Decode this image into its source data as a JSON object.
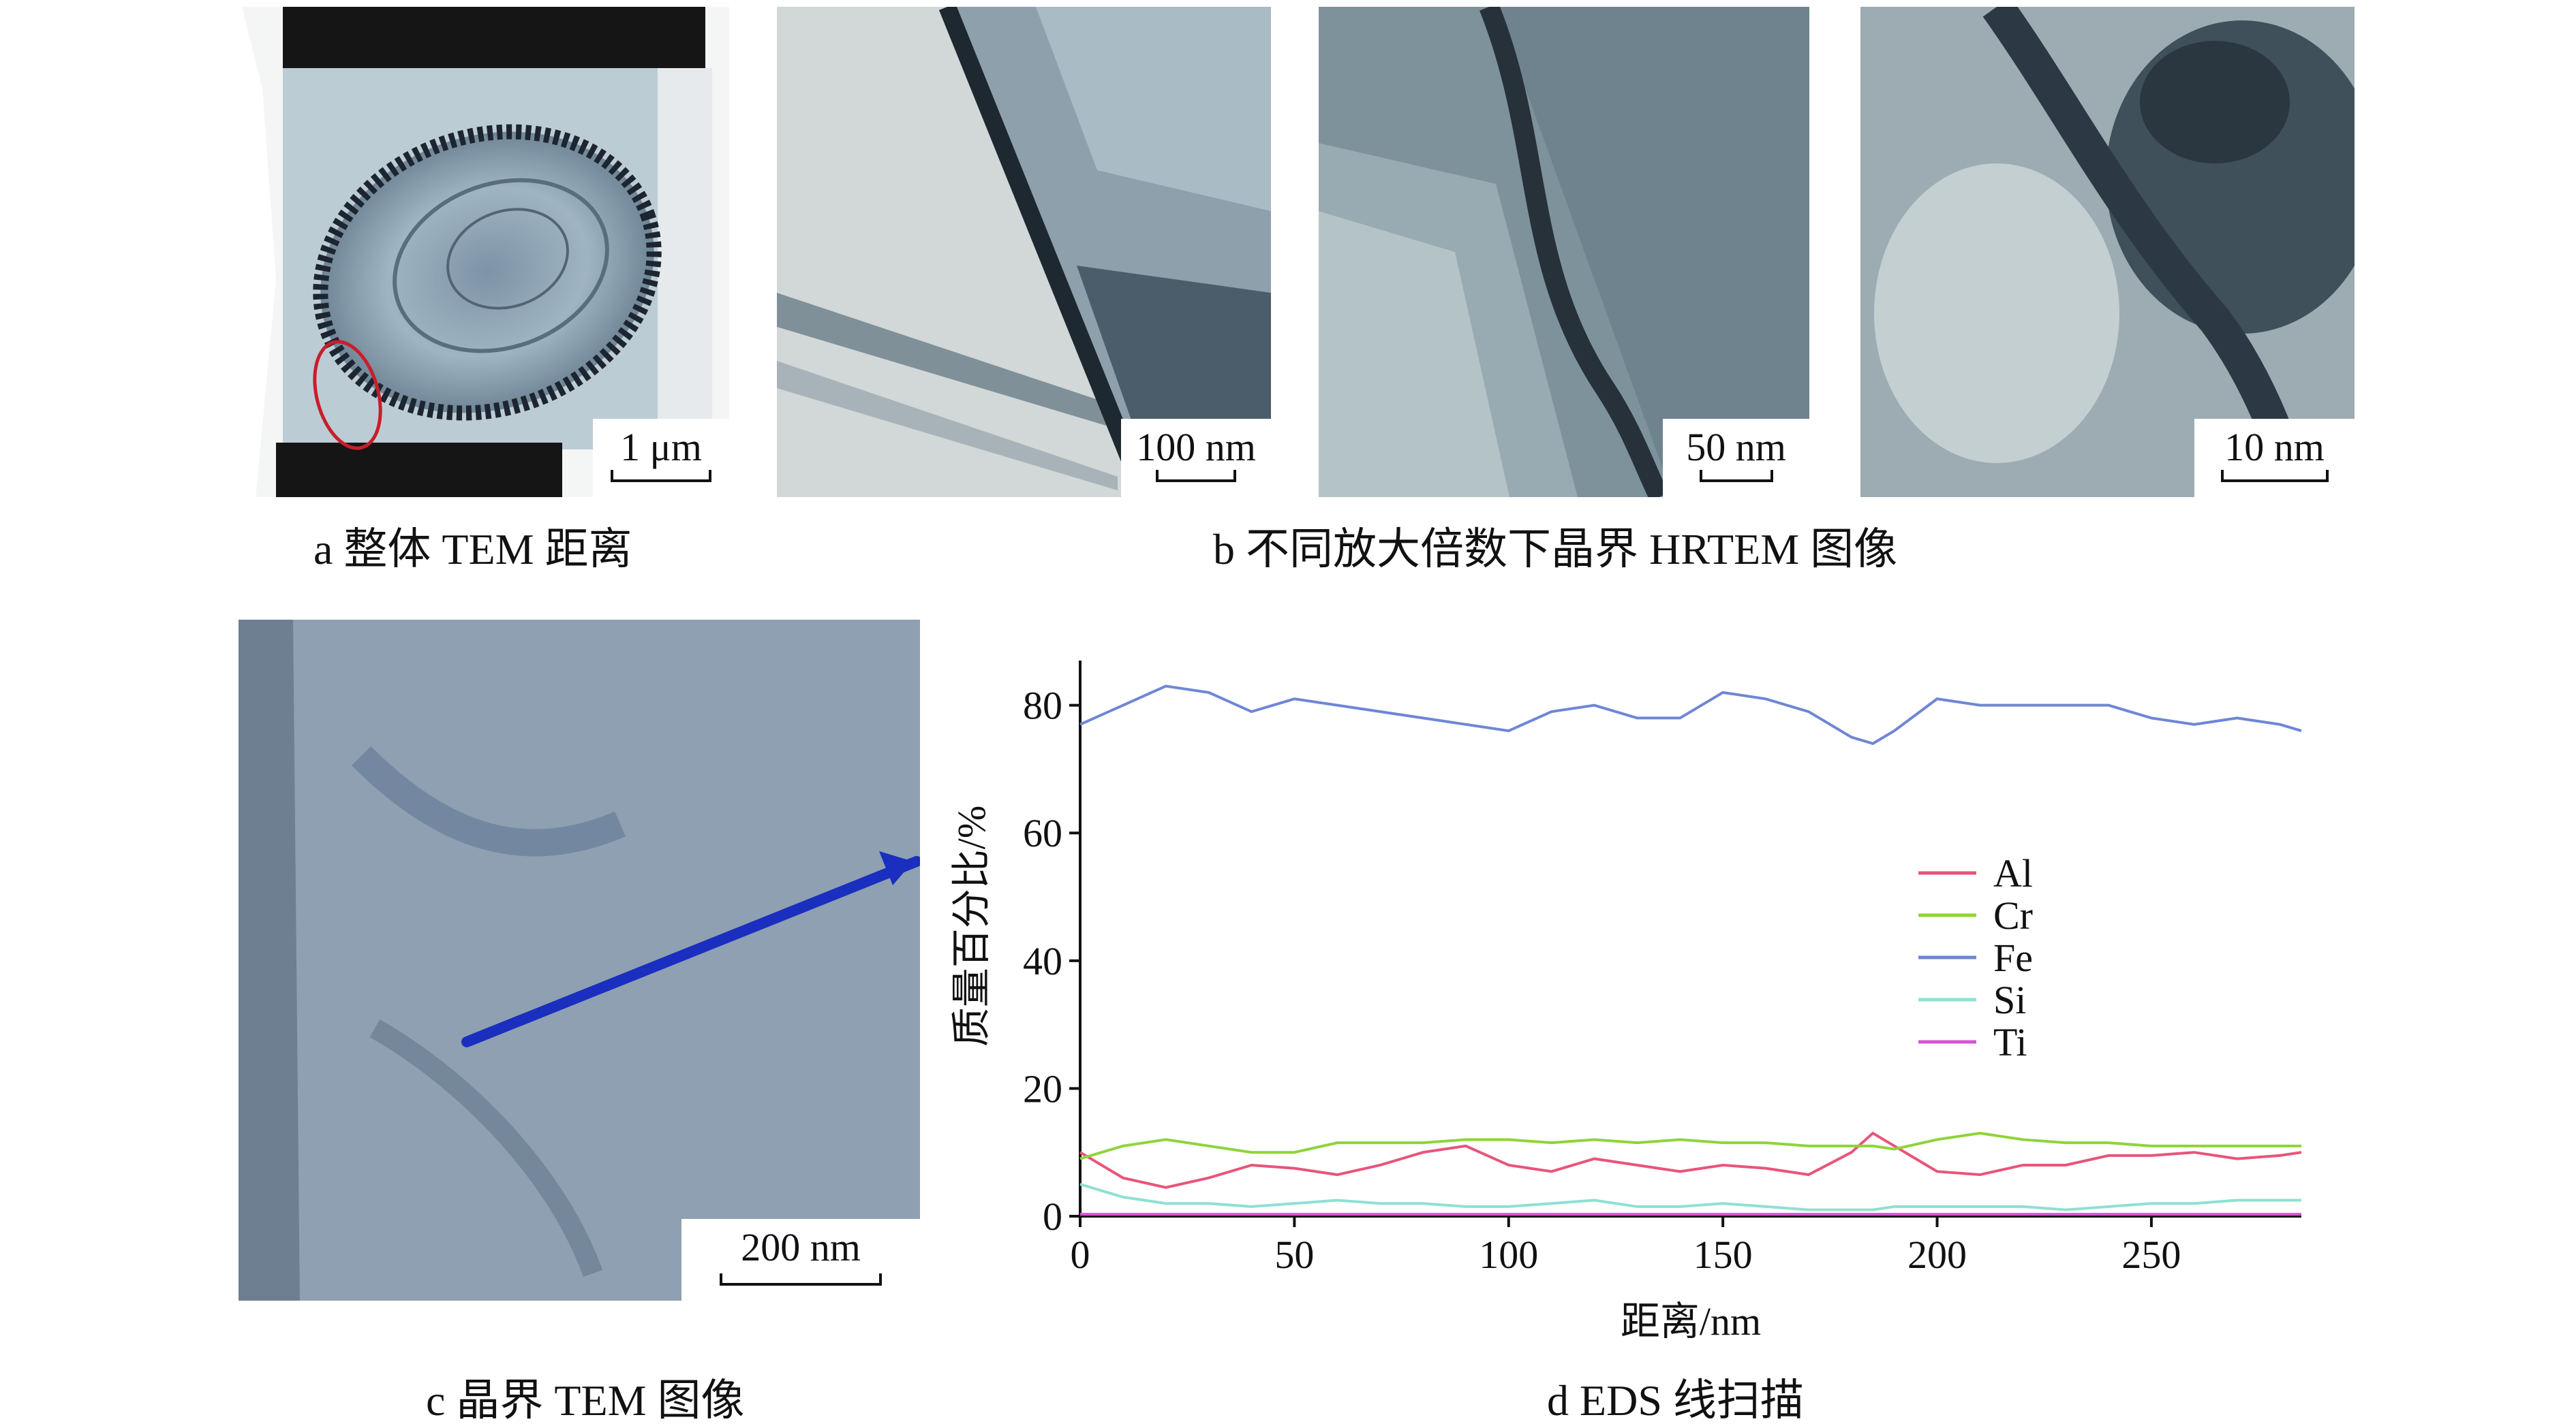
{
  "panels": {
    "a": {
      "caption": "a  整体 TEM 距离",
      "scale": "1 μm"
    },
    "b": {
      "caption": "b  不同放大倍数下晶界 HRTEM 图像",
      "scales": [
        "100 nm",
        "50 nm",
        "10 nm"
      ]
    },
    "c": {
      "caption": "c  晶界 TEM 图像",
      "scale": "200 nm"
    },
    "d": {
      "caption": "d  EDS 线扫描"
    }
  },
  "colors": {
    "Al": "#e8557a",
    "Cr": "#8fd43a",
    "Fe": "#6f86d6",
    "Si": "#8fe0d2",
    "Ti": "#d455d4",
    "arrow": "#1a2fbf"
  },
  "chart_data": {
    "type": "line",
    "xlabel": "距离/nm",
    "ylabel": "质量百分比/%",
    "xlim": [
      0,
      285
    ],
    "ylim": [
      0,
      87
    ],
    "xticks": [
      0,
      50,
      100,
      150,
      200,
      250
    ],
    "yticks": [
      0,
      20,
      40,
      60,
      80
    ],
    "legend_position": "center-right",
    "x": [
      0,
      10,
      20,
      30,
      40,
      50,
      60,
      70,
      80,
      90,
      100,
      110,
      120,
      130,
      140,
      150,
      160,
      170,
      180,
      185,
      190,
      200,
      210,
      220,
      230,
      240,
      250,
      260,
      270,
      280,
      285
    ],
    "series": [
      {
        "name": "Al",
        "values": [
          10,
          6,
          4.5,
          6,
          8,
          7.5,
          6.5,
          8,
          10,
          11,
          8,
          7,
          9,
          8,
          7,
          8,
          7.5,
          6.5,
          10,
          13,
          11,
          7,
          6.5,
          8,
          8,
          9.5,
          9.5,
          10,
          9,
          9.5,
          10
        ]
      },
      {
        "name": "Cr",
        "values": [
          9,
          11,
          12,
          11,
          10,
          10,
          11.5,
          11.5,
          11.5,
          12,
          12,
          11.5,
          12,
          11.5,
          12,
          11.5,
          11.5,
          11,
          11,
          11,
          10.5,
          12,
          13,
          12,
          11.5,
          11.5,
          11,
          11,
          11,
          11,
          11
        ]
      },
      {
        "name": "Fe",
        "values": [
          77,
          80,
          83,
          82,
          79,
          81,
          80,
          79,
          78,
          77,
          76,
          79,
          80,
          78,
          78,
          82,
          81,
          79,
          75,
          74,
          76,
          81,
          80,
          80,
          80,
          80,
          78,
          77,
          78,
          77,
          76
        ]
      },
      {
        "name": "Si",
        "values": [
          5,
          3,
          2,
          2,
          1.5,
          2,
          2.5,
          2,
          2,
          1.5,
          1.5,
          2,
          2.5,
          1.5,
          1.5,
          2,
          1.5,
          1,
          1,
          1,
          1.5,
          1.5,
          1.5,
          1.5,
          1,
          1.5,
          2,
          2,
          2.5,
          2.5,
          2.5
        ]
      },
      {
        "name": "Ti",
        "values": [
          0.3,
          0.3,
          0.3,
          0.3,
          0.3,
          0.3,
          0.3,
          0.3,
          0.3,
          0.3,
          0.3,
          0.3,
          0.3,
          0.3,
          0.3,
          0.3,
          0.3,
          0.3,
          0.3,
          0.3,
          0.3,
          0.3,
          0.3,
          0.3,
          0.3,
          0.3,
          0.3,
          0.3,
          0.3,
          0.3,
          0.3
        ]
      }
    ]
  }
}
